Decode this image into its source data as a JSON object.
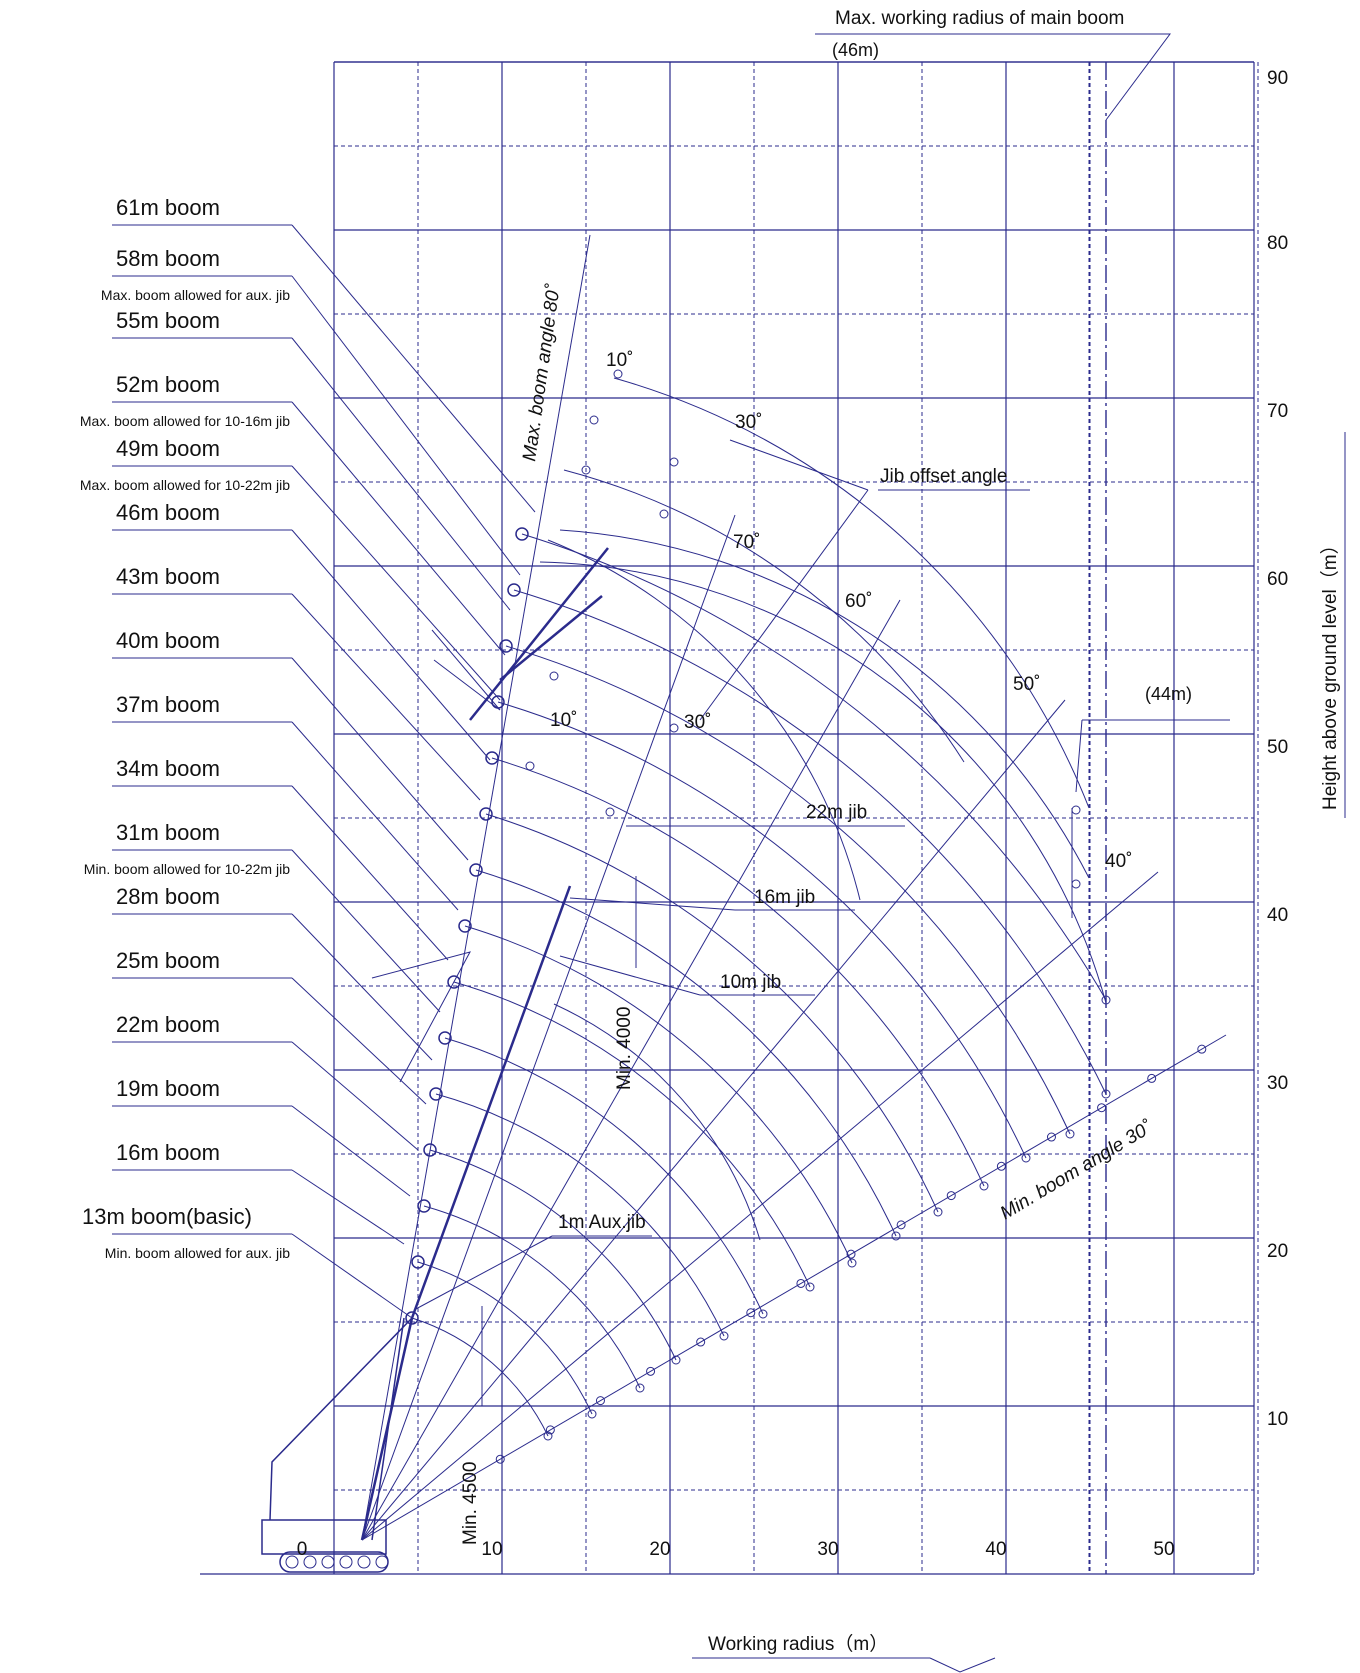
{
  "title_bits": {
    "max_radius_main": "Max. working radius of main boom",
    "max_radius_value": "(46m)",
    "jib_radius_value": "(44m)"
  },
  "axes": {
    "x_label": "Working radius（m）",
    "y_label": "Height above ground level（m）",
    "x_ticks": [
      "0",
      "10",
      "20",
      "30",
      "40",
      "50"
    ],
    "y_ticks": [
      "10",
      "20",
      "30",
      "40",
      "50",
      "60",
      "70",
      "80",
      "90"
    ]
  },
  "booms": [
    {
      "label": "61m boom",
      "note": ""
    },
    {
      "label": "58m boom",
      "note": "Max. boom allowed for aux. jib"
    },
    {
      "label": "55m boom",
      "note": ""
    },
    {
      "label": "52m boom",
      "note": "Max. boom allowed for 10-16m jib"
    },
    {
      "label": "49m boom",
      "note": "Max. boom allowed for 10-22m jib"
    },
    {
      "label": "46m boom",
      "note": ""
    },
    {
      "label": "43m boom",
      "note": ""
    },
    {
      "label": "40m boom",
      "note": ""
    },
    {
      "label": "37m boom",
      "note": ""
    },
    {
      "label": "34m boom",
      "note": ""
    },
    {
      "label": "31m boom",
      "note": "Min. boom allowed for 10-22m jib"
    },
    {
      "label": "28m boom",
      "note": ""
    },
    {
      "label": "25m boom",
      "note": ""
    },
    {
      "label": "22m boom",
      "note": ""
    },
    {
      "label": "19m boom",
      "note": ""
    },
    {
      "label": "16m boom",
      "note": ""
    },
    {
      "label": "13m boom(basic)",
      "note": "Min. boom allowed for aux. jib"
    }
  ],
  "annotations": {
    "max_boom_angle": "Max. boom angle 80˚",
    "min_boom_angle": "Min. boom angle 30˚",
    "jib_offset": "Jib offset angle",
    "jib22": "22m jib",
    "jib16": "16m jib",
    "jib10": "10m jib",
    "aux_jib": "1m Aux.jib",
    "min4000": "Min. 4000",
    "min4500": "Min. 4500",
    "ang_70": "70˚",
    "ang_60": "60˚",
    "ang_50": "50˚",
    "ang_40": "40˚",
    "ang_10_top": "10˚",
    "ang_30_top": "30˚",
    "ang_10_mid": "10˚",
    "ang_30_mid": "30˚"
  },
  "colors": {
    "ink": "#2b2b8c",
    "text": "#111111"
  }
}
